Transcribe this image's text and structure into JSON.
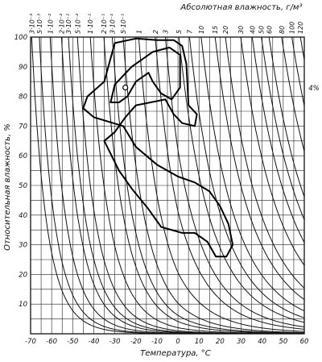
{
  "chart_data": {
    "type": "line",
    "title": "Абсолютная влажность, г/м³",
    "xlabel": "Температура, °С",
    "ylabel": "Относительная влажность, %",
    "xlim": [
      -70,
      60
    ],
    "ylim": [
      0,
      100
    ],
    "x_ticks": [
      "-70",
      "-60",
      "-50",
      "-40",
      "-30",
      "-20",
      "-10",
      "0",
      "10",
      "20",
      "30",
      "40",
      "50",
      "60"
    ],
    "y_ticks": [
      "10",
      "20",
      "30",
      "40",
      "50",
      "60",
      "70",
      "80",
      "90",
      "100"
    ],
    "grid": true,
    "absolute_humidity_curves": [
      {
        "label": "3·10⁻³",
        "value": 0.003
      },
      {
        "label": "5·10⁻³",
        "value": 0.005
      },
      {
        "label": "1·10⁻²",
        "value": 0.01
      },
      {
        "label": "2·10⁻²",
        "value": 0.02
      },
      {
        "label": "3·10⁻²",
        "value": 0.03
      },
      {
        "label": "5·10⁻²",
        "value": 0.05
      },
      {
        "label": "1·10⁻¹",
        "value": 0.1
      },
      {
        "label": "2·10⁻¹",
        "value": 0.2
      },
      {
        "label": "3·10⁻¹",
        "value": 0.3
      },
      {
        "label": "5·10⁻¹",
        "value": 0.5
      },
      {
        "label": "1",
        "value": 1
      },
      {
        "label": "2",
        "value": 2
      },
      {
        "label": "3",
        "value": 3
      },
      {
        "label": "5",
        "value": 5
      },
      {
        "label": "7",
        "value": 7
      },
      {
        "label": "10",
        "value": 10
      },
      {
        "label": "15",
        "value": 15
      },
      {
        "label": "20",
        "value": 20
      },
      {
        "label": "30",
        "value": 30
      },
      {
        "label": "40",
        "value": 40
      },
      {
        "label": "50",
        "value": 50
      },
      {
        "label": "60",
        "value": 60
      },
      {
        "label": "80",
        "value": 80
      },
      {
        "label": "100",
        "value": 100
      },
      {
        "label": "120",
        "value": 120
      }
    ],
    "annotation": "4%",
    "annotation_point": {
      "x": 62,
      "y": 82
    },
    "regions": [
      {
        "name": "",
        "points": [
          [
            -43,
            80
          ],
          [
            -35,
            85
          ],
          [
            -30,
            98
          ],
          [
            -20,
            99.5
          ],
          [
            -10,
            99
          ],
          [
            -2,
            99
          ],
          [
            2,
            97
          ],
          [
            4,
            91
          ],
          [
            5,
            77
          ],
          [
            9,
            74
          ],
          [
            8,
            70
          ],
          [
            2,
            71
          ],
          [
            -2,
            74
          ],
          [
            -6,
            79
          ],
          [
            -20,
            77
          ],
          [
            -25,
            73
          ],
          [
            -30,
            68
          ],
          [
            -35,
            65
          ],
          [
            -28,
            55
          ],
          [
            -22,
            49
          ],
          [
            -14,
            42
          ],
          [
            -8,
            36
          ],
          [
            2,
            34
          ],
          [
            8,
            34
          ],
          [
            14,
            31
          ],
          [
            18,
            26
          ],
          [
            23,
            26
          ],
          [
            26,
            30
          ],
          [
            24,
            37
          ],
          [
            20,
            43
          ],
          [
            15,
            48
          ],
          [
            8,
            51
          ],
          [
            0,
            53
          ],
          [
            -10,
            57
          ],
          [
            -20,
            63
          ],
          [
            -26,
            70
          ],
          [
            -40,
            73
          ],
          [
            -45,
            76
          ],
          [
            -43,
            80
          ]
        ]
      },
      {
        "name": "",
        "points": [
          [
            -32,
            78
          ],
          [
            -30,
            84
          ],
          [
            -22,
            90
          ],
          [
            -12,
            95
          ],
          [
            -4,
            96.5
          ],
          [
            1,
            94
          ],
          [
            1,
            83
          ],
          [
            -3,
            79
          ],
          [
            -8,
            81
          ],
          [
            -12,
            85
          ],
          [
            -14,
            88
          ],
          [
            -20,
            85
          ],
          [
            -24,
            80
          ],
          [
            -28,
            78
          ],
          [
            -32,
            78
          ]
        ]
      }
    ],
    "small_circle": {
      "x": -25,
      "y": 83
    }
  }
}
